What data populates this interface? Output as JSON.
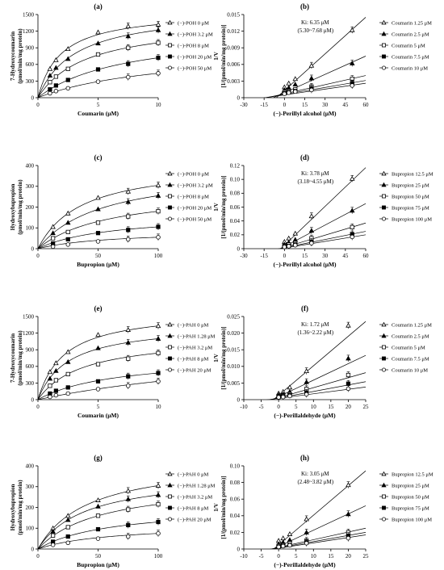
{
  "chart_data": [
    {
      "panel": "(a)",
      "type": "scatter",
      "kind": "mm",
      "xlabel": "Coumarin (μM)",
      "ylabel": [
        "7-Hydroxycoumarin",
        "(pmol/min/mg protein)"
      ],
      "xlim": [
        0,
        10
      ],
      "ylim": [
        0,
        1500
      ],
      "xticks": [
        0,
        5,
        10
      ],
      "yticks": [
        0,
        300,
        600,
        900,
        1200,
        1500
      ],
      "x": [
        1,
        1.5,
        2.5,
        5,
        7.5,
        10
      ],
      "series": [
        {
          "name": "(−)-POH 0 μM",
          "marker": "triangle-open",
          "values": [
            520,
            680,
            880,
            1180,
            1290,
            1320
          ]
        },
        {
          "name": "(−)-POH 3.2 μM",
          "marker": "triangle-filled",
          "values": [
            400,
            540,
            700,
            980,
            1110,
            1220
          ]
        },
        {
          "name": "(−)-POH 8 μM",
          "marker": "square-open",
          "values": [
            280,
            380,
            520,
            780,
            900,
            990
          ]
        },
        {
          "name": "(−)-POH 20 μM",
          "marker": "square-filled",
          "values": [
            150,
            220,
            320,
            510,
            610,
            720
          ]
        },
        {
          "name": "(−)-POH 50 μM",
          "marker": "circle-open",
          "values": [
            80,
            120,
            170,
            290,
            370,
            440
          ]
        }
      ]
    },
    {
      "panel": "(b)",
      "type": "line",
      "kind": "lb",
      "xlabel": "(−)-Perillyl alcohol (μM)",
      "ylabel": [
        "1/V",
        "[1/(pmol/min/mg protein)]"
      ],
      "xlim": [
        -30,
        60
      ],
      "ylim": [
        0,
        0.015
      ],
      "xticks": [
        -30,
        -15,
        0,
        15,
        30,
        45,
        60
      ],
      "yticks": [
        "0",
        "0.003",
        "0.006",
        "0.009",
        "0.012",
        "0.015"
      ],
      "ytick_values": [
        0,
        0.003,
        0.006,
        0.009,
        0.012,
        0.015
      ],
      "annotation": [
        "Ki: 6.35 μM",
        "(5.30~7.68 μM)"
      ],
      "x": [
        0,
        3.2,
        8,
        20,
        50
      ],
      "series": [
        {
          "name": "Coumarin 1.25 μM",
          "marker": "triangle-open",
          "values": [
            0.0019,
            0.0026,
            0.0034,
            0.0058,
            0.0122
          ],
          "line": [
            0.0013,
            0.0145
          ]
        },
        {
          "name": "Coumarin 2.5 μM",
          "marker": "triangle-filled",
          "values": [
            0.0014,
            0.0018,
            0.0024,
            0.0035,
            0.0062
          ],
          "line": [
            0.0009,
            0.0075
          ]
        },
        {
          "name": "Coumarin 5 μM",
          "marker": "square-open",
          "values": [
            0.001,
            0.0012,
            0.0015,
            0.002,
            0.0034
          ],
          "line": [
            0.0007,
            0.004
          ]
        },
        {
          "name": "Coumarin 7.5 μM",
          "marker": "square-filled",
          "values": [
            0.0008,
            0.001,
            0.0012,
            0.0016,
            0.0026
          ],
          "line": [
            0.0006,
            0.0031
          ]
        },
        {
          "name": "Coumarin 10 μM",
          "marker": "circle-open",
          "values": [
            0.0007,
            0.0009,
            0.0011,
            0.0014,
            0.0022
          ],
          "line": [
            0.0005,
            0.0026
          ]
        }
      ]
    },
    {
      "panel": "(c)",
      "type": "scatter",
      "kind": "mm",
      "xlabel": "Bupropion (μM)",
      "ylabel": [
        "Hydroxybupropion",
        "(pmol/min/mg protein)"
      ],
      "xlim": [
        0,
        100
      ],
      "ylim": [
        0,
        400
      ],
      "xticks": [
        0,
        50,
        100
      ],
      "yticks": [
        0,
        100,
        200,
        300,
        400
      ],
      "x": [
        12.5,
        25,
        50,
        75,
        100
      ],
      "series": [
        {
          "name": "(−)-POH 0 μM",
          "marker": "triangle-open",
          "values": [
            105,
            170,
            245,
            275,
            305
          ]
        },
        {
          "name": "(−)-POH 3.2 μM",
          "marker": "triangle-filled",
          "values": [
            75,
            125,
            190,
            225,
            255
          ]
        },
        {
          "name": "(−)-POH 8 μM",
          "marker": "square-open",
          "values": [
            50,
            80,
            125,
            155,
            180
          ]
        },
        {
          "name": "(−)-POH 20 μM",
          "marker": "square-filled",
          "values": [
            25,
            45,
            75,
            90,
            105
          ]
        },
        {
          "name": "(−)-POH 50 μM",
          "marker": "circle-open",
          "values": [
            10,
            20,
            35,
            45,
            55
          ]
        }
      ]
    },
    {
      "panel": "(d)",
      "type": "line",
      "kind": "lb",
      "xlabel": "(−)-Perillyl alcohol (μM)",
      "ylabel": [
        "1/V",
        "[1/(pmol/min/mg protein)]"
      ],
      "xlim": [
        -30,
        60
      ],
      "ylim": [
        0,
        0.12
      ],
      "xticks": [
        -30,
        -15,
        0,
        15,
        30,
        45,
        60
      ],
      "yticks": [
        "0",
        "0.02",
        "0.04",
        "0.06",
        "0.08",
        "0.10",
        "0.12"
      ],
      "ytick_values": [
        0,
        0.02,
        0.04,
        0.06,
        0.08,
        0.1,
        0.12
      ],
      "annotation": [
        "Ki: 3.78 μM",
        "(3.18~4.55 μM)"
      ],
      "x": [
        0,
        3.2,
        8,
        20,
        50
      ],
      "series": [
        {
          "name": "Bupropion 12.5 μM",
          "marker": "triangle-open",
          "values": [
            0.01,
            0.015,
            0.022,
            0.047,
            0.101
          ],
          "line": [
            0.005,
            0.117
          ]
        },
        {
          "name": "Bupropion 25 μM",
          "marker": "triangle-filled",
          "values": [
            0.006,
            0.009,
            0.013,
            0.026,
            0.055
          ],
          "line": [
            0.003,
            0.065
          ]
        },
        {
          "name": "Bupropion 50 μM",
          "marker": "square-open",
          "values": [
            0.004,
            0.006,
            0.008,
            0.015,
            0.031
          ],
          "line": [
            0.002,
            0.037
          ]
        },
        {
          "name": "Bupropion 75 μM",
          "marker": "square-filled",
          "values": [
            0.003,
            0.004,
            0.006,
            0.01,
            0.021
          ],
          "line": [
            0.0015,
            0.025
          ]
        },
        {
          "name": "Bupropion 100 μM",
          "marker": "circle-open",
          "values": [
            0.0025,
            0.0035,
            0.005,
            0.008,
            0.017
          ],
          "line": [
            0.001,
            0.02
          ]
        }
      ]
    },
    {
      "panel": "(e)",
      "type": "scatter",
      "kind": "mm",
      "xlabel": "Coumarin (μM)",
      "ylabel": [
        "7-Hydroxycoumarin",
        "(pmol/min/mg protein)"
      ],
      "xlim": [
        0,
        10
      ],
      "ylim": [
        0,
        1500
      ],
      "xticks": [
        0,
        5,
        10
      ],
      "yticks": [
        0,
        300,
        600,
        900,
        1200,
        1500
      ],
      "x": [
        1,
        1.5,
        2.5,
        5,
        7.5,
        10
      ],
      "series": [
        {
          "name": "(−)-PAH 0 μM",
          "marker": "triangle-open",
          "values": [
            500,
            660,
            860,
            1170,
            1260,
            1330
          ]
        },
        {
          "name": "(−)-PAH 1.28 μM",
          "marker": "triangle-filled",
          "values": [
            380,
            520,
            680,
            930,
            1030,
            1100
          ]
        },
        {
          "name": "(−)-PAH 3.2 μM",
          "marker": "square-open",
          "values": [
            250,
            350,
            460,
            640,
            740,
            840
          ]
        },
        {
          "name": "(−)-PAH 8 μM",
          "marker": "square-filled",
          "values": [
            110,
            160,
            220,
            330,
            420,
            480
          ]
        },
        {
          "name": "(−)-PAH 20 μM",
          "marker": "circle-open",
          "values": [
            50,
            80,
            110,
            190,
            250,
            330
          ]
        }
      ]
    },
    {
      "panel": "(f)",
      "type": "line",
      "kind": "lb",
      "xlabel": "(−)-Perillaldehyde (μM)",
      "ylabel": [
        "1/V",
        "[1/(pmol/min/mg protein)]"
      ],
      "xlim": [
        -10,
        25
      ],
      "ylim": [
        0,
        0.025
      ],
      "xticks": [
        -10,
        -5,
        0,
        5,
        10,
        15,
        20,
        25
      ],
      "yticks": [
        "0",
        "0.005",
        "0.010",
        "0.015",
        "0.020",
        "0.025"
      ],
      "ytick_values": [
        0,
        0.005,
        0.01,
        0.015,
        0.02,
        0.025
      ],
      "annotation": [
        "Ki: 1.72 μM",
        "(1.36~2.22 μM)"
      ],
      "x": [
        0,
        1.28,
        3.2,
        8,
        20
      ],
      "series": [
        {
          "name": "Coumarin 1.25 μM",
          "marker": "triangle-open",
          "values": [
            0.0019,
            0.0024,
            0.0037,
            0.0086,
            0.0223
          ],
          "line": [
            0.0013,
            0.0235
          ]
        },
        {
          "name": "Coumarin 2.5 μM",
          "marker": "triangle-filled",
          "values": [
            0.0014,
            0.0017,
            0.0024,
            0.0053,
            0.0124
          ],
          "line": [
            0.0009,
            0.0133
          ]
        },
        {
          "name": "Coumarin 5 μM",
          "marker": "square-open",
          "values": [
            0.001,
            0.0012,
            0.0016,
            0.0032,
            0.0074
          ],
          "line": [
            0.0006,
            0.0081
          ]
        },
        {
          "name": "Coumarin 7.5 μM",
          "marker": "square-filled",
          "values": [
            0.0008,
            0.001,
            0.0013,
            0.0021,
            0.0048
          ],
          "line": [
            0.0005,
            0.0054
          ]
        },
        {
          "name": "Coumarin 10 μM",
          "marker": "circle-open",
          "values": [
            0.0007,
            0.0008,
            0.0011,
            0.0016,
            0.0033
          ],
          "line": [
            0.0004,
            0.0038
          ]
        }
      ]
    },
    {
      "panel": "(g)",
      "type": "scatter",
      "kind": "mm",
      "xlabel": "Bupropion (μM)",
      "ylabel": [
        "Hydroxybupropion",
        "(pmol/min/mg protein)"
      ],
      "xlim": [
        0,
        100
      ],
      "ylim": [
        0,
        400
      ],
      "xticks": [
        0,
        50,
        100
      ],
      "yticks": [
        0,
        100,
        200,
        300,
        400
      ],
      "x": [
        12.5,
        25,
        50,
        75,
        100
      ],
      "series": [
        {
          "name": "(−)-PAH 0 μM",
          "marker": "triangle-open",
          "values": [
            100,
            160,
            235,
            280,
            305
          ]
        },
        {
          "name": "(−)-PAH 1.28 μM",
          "marker": "triangle-filled",
          "values": [
            85,
            140,
            205,
            240,
            260
          ]
        },
        {
          "name": "(−)-PAH 3.2 μM",
          "marker": "square-open",
          "values": [
            65,
            105,
            160,
            190,
            215
          ]
        },
        {
          "name": "(−)-PAH 8 μM",
          "marker": "square-filled",
          "values": [
            35,
            60,
            95,
            115,
            130
          ]
        },
        {
          "name": "(−)-PAH 20 μM",
          "marker": "circle-open",
          "values": [
            20,
            30,
            50,
            60,
            75
          ]
        }
      ]
    },
    {
      "panel": "(h)",
      "type": "line",
      "kind": "lb",
      "xlabel": "(−)-Perillaldehyde (μM)",
      "ylabel": [
        "1/V",
        "[1/(pmol/min/mg protein)]"
      ],
      "xlim": [
        -10,
        25
      ],
      "ylim": [
        0,
        0.1
      ],
      "xticks": [
        -10,
        -5,
        0,
        5,
        10,
        15,
        20,
        25
      ],
      "yticks": [
        "0",
        "0.02",
        "0.04",
        "0.06",
        "0.08",
        "0.10"
      ],
      "ytick_values": [
        0,
        0.02,
        0.04,
        0.06,
        0.08,
        0.1
      ],
      "annotation": [
        "Ki: 3.05 μM",
        "(2.48~3.82 μM)"
      ],
      "x": [
        0,
        1.28,
        3.2,
        8,
        20
      ],
      "series": [
        {
          "name": "Bupropion 12.5 μM",
          "marker": "triangle-open",
          "values": [
            0.01,
            0.013,
            0.018,
            0.036,
            0.077
          ],
          "line": [
            0.005,
            0.094
          ]
        },
        {
          "name": "Bupropion 25 μM",
          "marker": "triangle-filled",
          "values": [
            0.006,
            0.008,
            0.011,
            0.02,
            0.042
          ],
          "line": [
            0.003,
            0.052
          ]
        },
        {
          "name": "Bupropion 50 μM",
          "marker": "square-open",
          "values": [
            0.004,
            0.005,
            0.007,
            0.01,
            0.02
          ],
          "line": [
            0.002,
            0.025
          ]
        },
        {
          "name": "Bupropion 75 μM",
          "marker": "square-filled",
          "values": [
            0.003,
            0.004,
            0.005,
            0.008,
            0.016
          ],
          "line": [
            0.0015,
            0.02
          ]
        },
        {
          "name": "Bupropion 100 μM",
          "marker": "circle-open",
          "values": [
            0.0025,
            0.0035,
            0.0045,
            0.007,
            0.013
          ],
          "line": [
            0.001,
            0.017
          ]
        }
      ]
    }
  ]
}
